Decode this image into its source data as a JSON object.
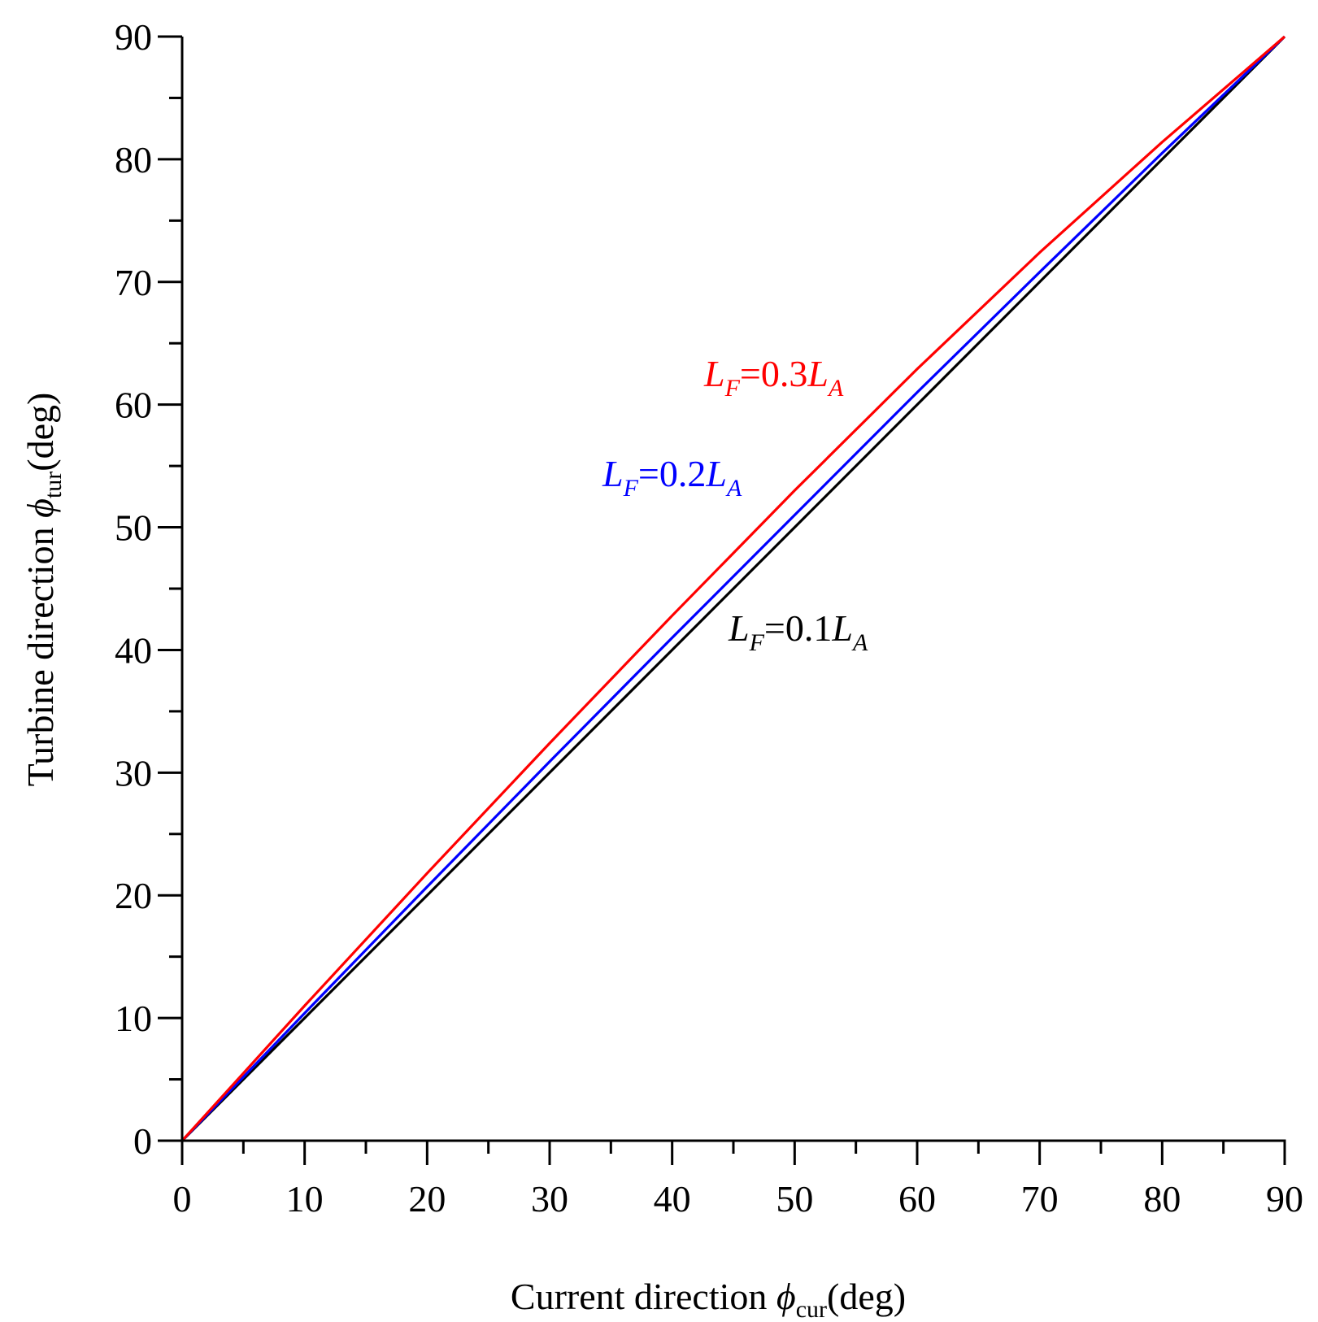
{
  "chart_data": {
    "type": "line",
    "xlabel": {
      "prefix": "Current direction ",
      "symbol": "ϕ",
      "subscript": "cur",
      "suffix": "(deg)"
    },
    "ylabel": {
      "prefix": "Turbine direction ",
      "symbol": "ϕ",
      "subscript": "tur",
      "suffix": "(deg)"
    },
    "xlim": [
      0,
      90
    ],
    "ylim": [
      0,
      90
    ],
    "xticks": [
      "0",
      "10",
      "20",
      "30",
      "40",
      "50",
      "60",
      "70",
      "80",
      "90"
    ],
    "yticks": [
      "0",
      "10",
      "20",
      "30",
      "40",
      "50",
      "60",
      "70",
      "80",
      "90"
    ],
    "grid": false,
    "series": [
      {
        "name": "L_F=0.1L_A",
        "color": "#000000",
        "x": [
          0,
          10,
          20,
          30,
          40,
          50,
          60,
          70,
          80,
          90
        ],
        "y": [
          0,
          10,
          20,
          30,
          40,
          50,
          60,
          70,
          80,
          90
        ]
      },
      {
        "name": "L_F=0.2L_A",
        "color": "#0000ff",
        "x": [
          0,
          10,
          20,
          30,
          40,
          50,
          60,
          70,
          80,
          90
        ],
        "y": [
          0,
          10.4,
          20.7,
          30.9,
          41.0,
          51.0,
          61.0,
          70.8,
          80.5,
          90
        ]
      },
      {
        "name": "L_F=0.3L_A",
        "color": "#ff0000",
        "x": [
          0,
          10,
          20,
          30,
          40,
          50,
          60,
          70,
          80,
          90
        ],
        "y": [
          0,
          11.0,
          21.8,
          32.4,
          42.8,
          53.0,
          62.9,
          72.4,
          81.4,
          90
        ]
      }
    ],
    "annotations": [
      {
        "id": "red",
        "color": "#ff0000",
        "L": "L",
        "F": "F",
        "mid": "=0.3",
        "L2": "L",
        "A": "A"
      },
      {
        "id": "blue",
        "color": "#0000ff",
        "L": "L",
        "F": "F",
        "mid": "=0.2",
        "L2": "L",
        "A": "A"
      },
      {
        "id": "black",
        "color": "#000000",
        "L": "L",
        "F": "F",
        "mid": "=0.1",
        "L2": "L",
        "A": "A"
      }
    ]
  }
}
